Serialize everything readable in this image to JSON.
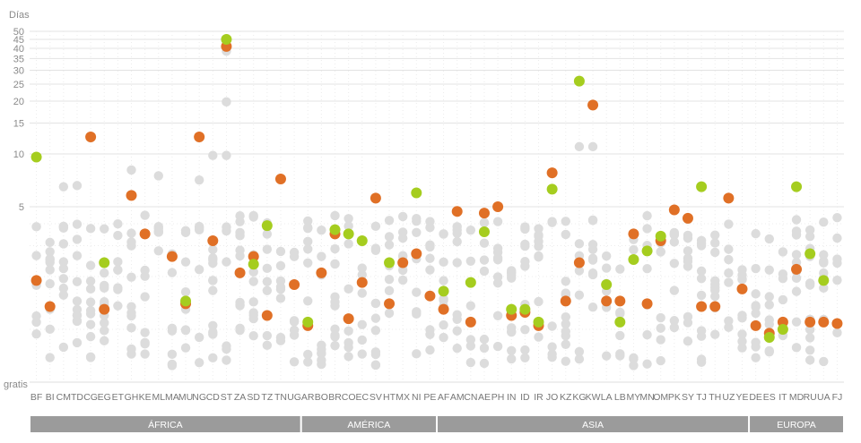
{
  "chart_data": {
    "type": "scatter",
    "ylabel": "Días",
    "y_scale": "log",
    "ylim": [
      0.5,
      50
    ],
    "yticks": [
      5,
      10,
      15,
      20,
      25,
      30,
      35,
      40,
      45,
      50
    ],
    "bottom_label": "gratis",
    "grid": true,
    "categories": [
      "BF",
      "BI",
      "CM",
      "TD",
      "CG",
      "EG",
      "ET",
      "GH",
      "KE",
      "ML",
      "MA",
      "MU",
      "NG",
      "CD",
      "ST",
      "ZA",
      "SD",
      "TZ",
      "TN",
      "UG",
      "AR",
      "BO",
      "BR",
      "CO",
      "EC",
      "SV",
      "HT",
      "MX",
      "NI",
      "PE",
      "AF",
      "AM",
      "CN",
      "AE",
      "PH",
      "IN",
      "ID",
      "IR",
      "JO",
      "KZ",
      "KG",
      "KW",
      "LA",
      "LB",
      "MY",
      "MN",
      "OM",
      "PK",
      "SY",
      "TJ",
      "TH",
      "UZ",
      "YE",
      "DE",
      "ES",
      "IT",
      "MD",
      "RU",
      "UA",
      "FJ"
    ],
    "regions": [
      {
        "name": "ÁFRICA",
        "from": "BF",
        "to": "UG"
      },
      {
        "name": "AMÉRICA",
        "from": "AR",
        "to": "PE"
      },
      {
        "name": "ASIA",
        "from": "AF",
        "to": "YE"
      },
      {
        "name": "EUROPA",
        "from": "DE",
        "to": "FJ"
      }
    ],
    "series": [
      {
        "color": "#e07026",
        "values": [
          1.9,
          1.35,
          null,
          null,
          12.5,
          1.3,
          null,
          5.8,
          3.5,
          null,
          2.6,
          1.4,
          12.5,
          3.2,
          41,
          2.1,
          2.6,
          1.2,
          7.2,
          1.8,
          1.05,
          2.1,
          3.5,
          1.15,
          1.85,
          5.6,
          1.4,
          2.4,
          2.7,
          1.55,
          1.3,
          4.7,
          1.1,
          4.6,
          5.0,
          1.2,
          1.25,
          1.05,
          7.8,
          1.45,
          2.4,
          19,
          1.45,
          1.45,
          3.5,
          1.4,
          3.2,
          4.8,
          4.3,
          1.35,
          1.35,
          5.6,
          1.7,
          1.05,
          0.95,
          1.1,
          2.2,
          1.1,
          1.1,
          1.08
        ]
      },
      {
        "color": "#a5cd1f",
        "values": [
          9.6,
          null,
          null,
          null,
          null,
          2.4,
          null,
          null,
          null,
          null,
          null,
          1.45,
          null,
          null,
          45,
          null,
          2.35,
          3.9,
          null,
          null,
          1.1,
          null,
          3.7,
          3.5,
          3.2,
          null,
          2.4,
          null,
          6.0,
          null,
          1.65,
          null,
          1.85,
          3.6,
          null,
          1.3,
          1.3,
          1.1,
          6.3,
          null,
          26,
          null,
          1.8,
          1.1,
          2.5,
          2.8,
          3.4,
          null,
          null,
          6.5,
          null,
          null,
          null,
          null,
          0.9,
          1.0,
          6.5,
          2.7,
          1.9,
          null
        ]
      }
    ],
    "background_series": {
      "color": "#dcdcdc"
    }
  }
}
